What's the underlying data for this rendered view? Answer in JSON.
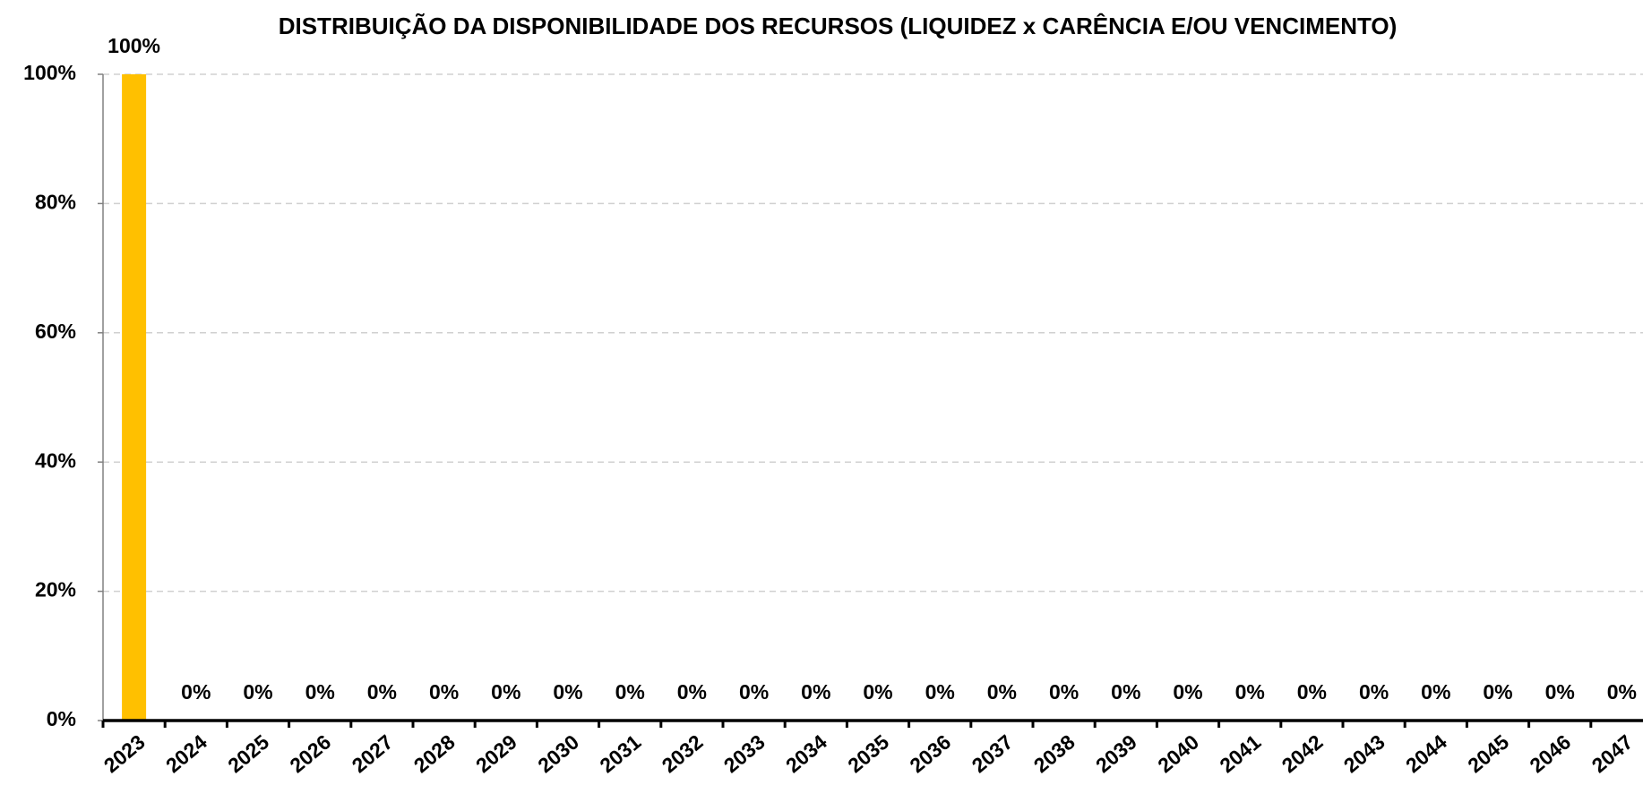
{
  "chart_data": {
    "type": "bar",
    "title": "DISTRIBUIÇÃO DA DISPONIBILIDADE DOS RECURSOS  (LIQUIDEZ x CARÊNCIA E/OU VENCIMENTO)",
    "categories": [
      "2023",
      "2024",
      "2025",
      "2026",
      "2027",
      "2028",
      "2029",
      "2030",
      "2031",
      "2032",
      "2033",
      "2034",
      "2035",
      "2036",
      "2037",
      "2038",
      "2039",
      "2040",
      "2041",
      "2042",
      "2043",
      "2044",
      "2045",
      "2046",
      "2047"
    ],
    "values": [
      100,
      0,
      0,
      0,
      0,
      0,
      0,
      0,
      0,
      0,
      0,
      0,
      0,
      0,
      0,
      0,
      0,
      0,
      0,
      0,
      0,
      0,
      0,
      0,
      0
    ],
    "value_labels": [
      "100%",
      "0%",
      "0%",
      "0%",
      "0%",
      "0%",
      "0%",
      "0%",
      "0%",
      "0%",
      "0%",
      "0%",
      "0%",
      "0%",
      "0%",
      "0%",
      "0%",
      "0%",
      "0%",
      "0%",
      "0%",
      "0%",
      "0%",
      "0%",
      "0%"
    ],
    "color": "#ffc000",
    "ylim": [
      0,
      100
    ],
    "yticks": [
      {
        "value": 0,
        "label": "0%"
      },
      {
        "value": 20,
        "label": "20%"
      },
      {
        "value": 40,
        "label": "40%"
      },
      {
        "value": 60,
        "label": "60%"
      },
      {
        "value": 80,
        "label": "80%"
      },
      {
        "value": 100,
        "label": "100%"
      }
    ],
    "grid": true
  }
}
